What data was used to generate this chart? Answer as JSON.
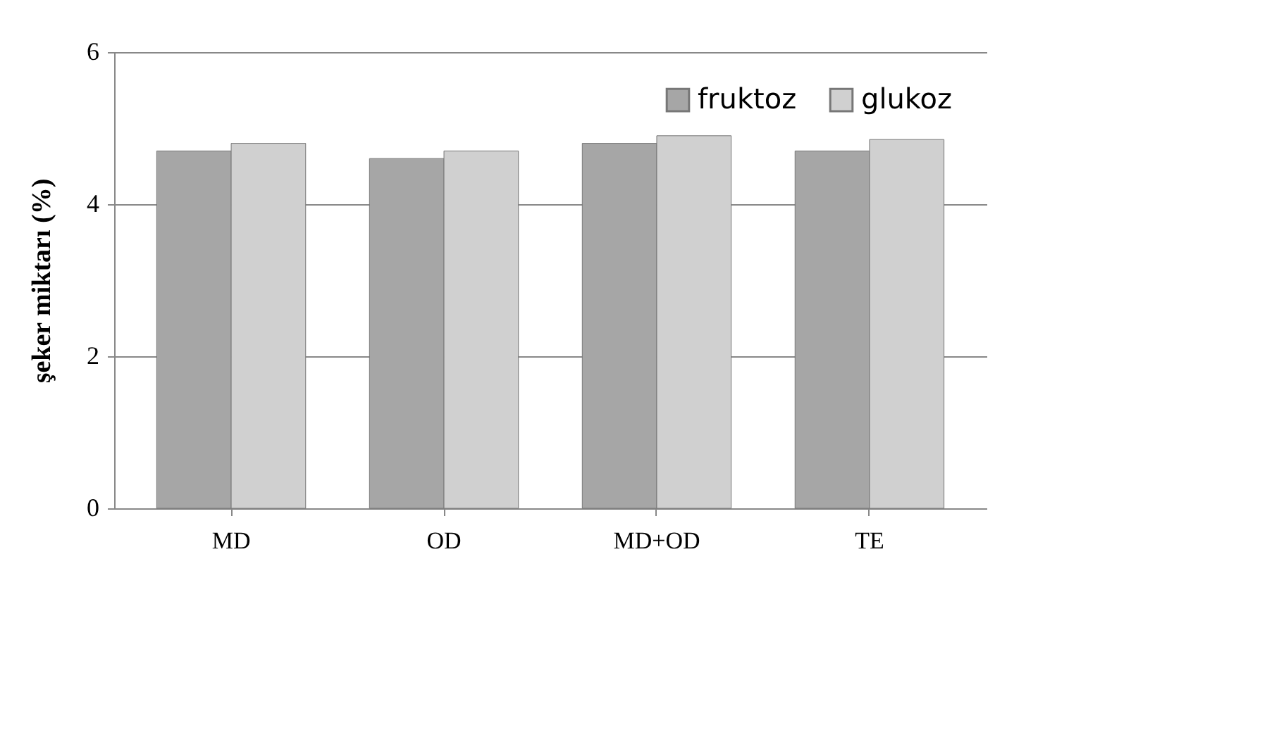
{
  "chart_data": {
    "type": "bar",
    "ylabel": "şeker  miktarı (%)",
    "categories": [
      "MD",
      "OD",
      "MD+OD",
      "TE"
    ],
    "series": [
      {
        "name": "fruktoz",
        "color": "#a6a6a6",
        "values": [
          4.7,
          4.6,
          4.8,
          4.7
        ]
      },
      {
        "name": "glukoz",
        "color": "#d0d0d0",
        "values": [
          4.8,
          4.7,
          4.9,
          4.85
        ]
      }
    ],
    "ylim": [
      0,
      6
    ],
    "yticks": [
      0,
      2,
      4,
      6
    ],
    "grid": "y",
    "legend": "top right"
  }
}
